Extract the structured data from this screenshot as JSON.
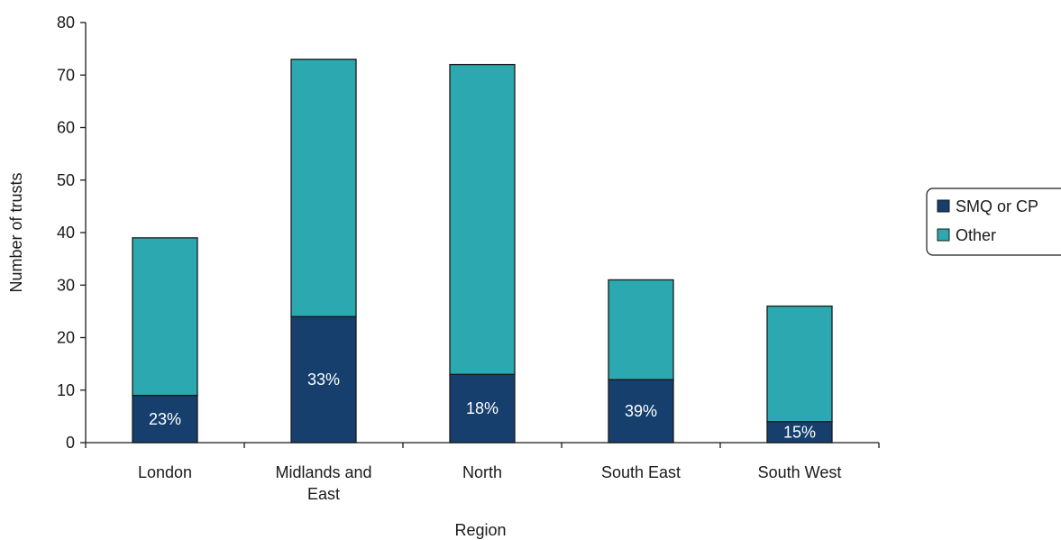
{
  "chart_data": {
    "type": "bar",
    "stacked": true,
    "categories": [
      "London",
      "Midlands and East",
      "North",
      "South East",
      "South West"
    ],
    "category_lines": [
      [
        "London"
      ],
      [
        "Midlands and",
        "East"
      ],
      [
        "North"
      ],
      [
        "South East"
      ],
      [
        "South West"
      ]
    ],
    "series": [
      {
        "name": "SMQ or CP",
        "color": "#163f6e",
        "values": [
          9,
          24,
          13,
          12,
          4
        ],
        "labels": [
          "23%",
          "33%",
          "18%",
          "39%",
          "15%"
        ]
      },
      {
        "name": "Other",
        "color": "#2ca8b0",
        "values": [
          30,
          49,
          59,
          19,
          22
        ]
      }
    ],
    "xlabel": "Region",
    "ylabel": "Number of trusts",
    "ylim": [
      0,
      80
    ],
    "yticks": [
      0,
      10,
      20,
      30,
      40,
      50,
      60,
      70,
      80
    ],
    "grid": false,
    "legend_position": "right"
  }
}
